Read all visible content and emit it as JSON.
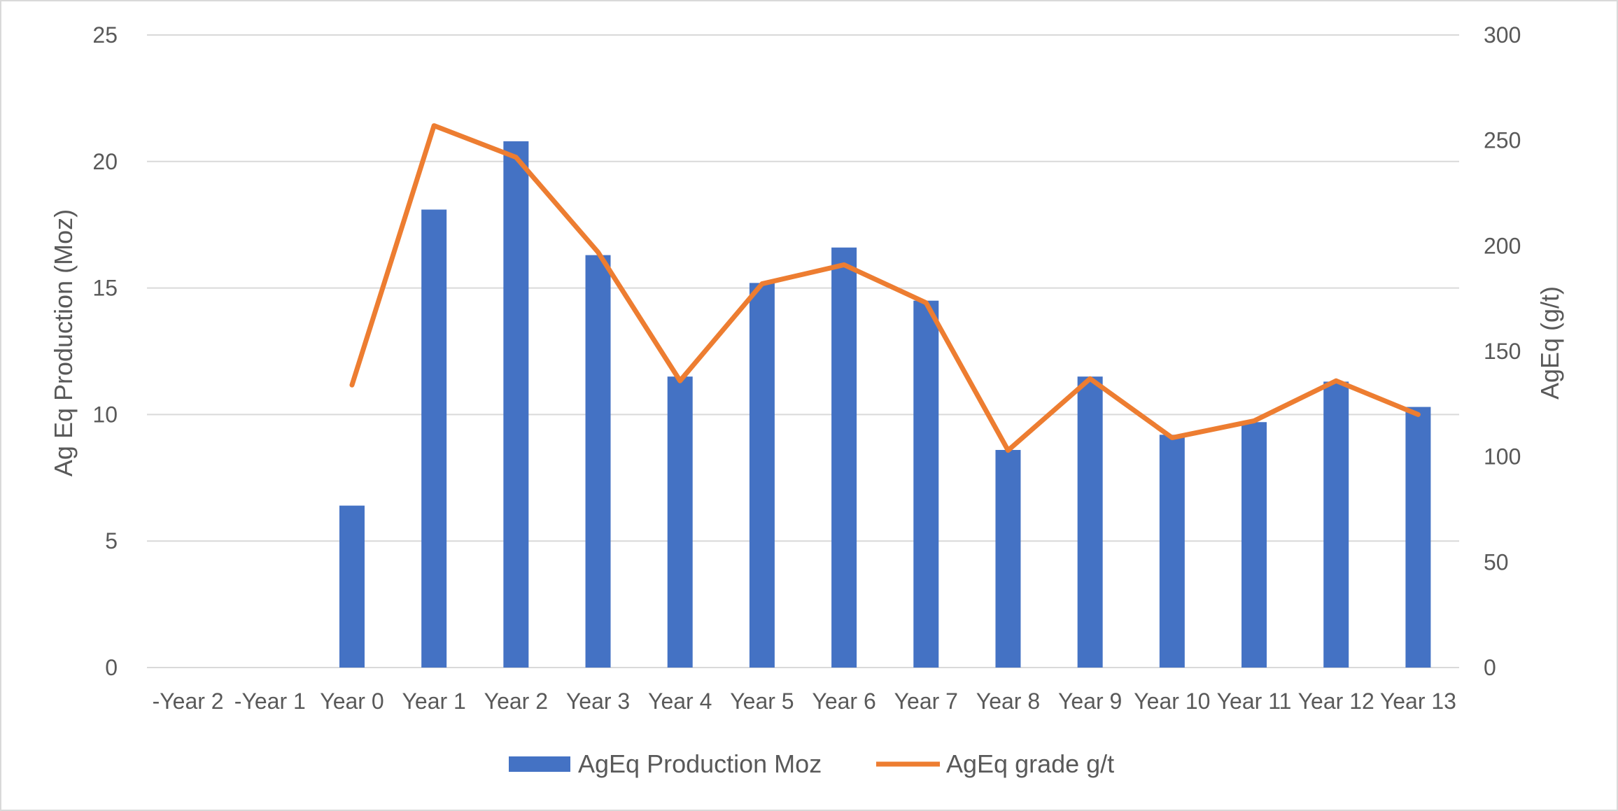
{
  "chart_data": {
    "type": "bar",
    "categories": [
      "-Year 2",
      "-Year 1",
      "Year 0",
      "Year 1",
      "Year 2",
      "Year 3",
      "Year 4",
      "Year 5",
      "Year 6",
      "Year 7",
      "Year 8",
      "Year 9",
      "Year 10",
      "Year 11",
      "Year 12",
      "Year 13"
    ],
    "series": [
      {
        "name": "AgEq Production Moz",
        "type": "bar",
        "axis": "left",
        "color": "#4472c4",
        "values": [
          null,
          null,
          6.4,
          18.1,
          20.8,
          16.3,
          11.5,
          15.2,
          16.6,
          14.5,
          8.6,
          11.5,
          9.2,
          9.7,
          11.3,
          10.3
        ]
      },
      {
        "name": "AgEq grade g/t",
        "type": "line",
        "axis": "right",
        "color": "#ed7d31",
        "values": [
          null,
          null,
          134,
          257,
          242,
          197,
          136,
          182,
          191,
          173,
          103,
          137,
          109,
          117,
          136,
          120
        ]
      }
    ],
    "ylabel": "Ag Eq Production (Moz)",
    "ylabel_right": "AgEq (g/t)",
    "ylim": [
      0,
      25
    ],
    "ylim_right": [
      0,
      300
    ],
    "yticks": [
      "0",
      "5",
      "10",
      "15",
      "20",
      "25"
    ],
    "yticks_right": [
      "0",
      "50",
      "100",
      "150",
      "200",
      "250",
      "300"
    ],
    "grid": true,
    "legend_position": "bottom"
  }
}
